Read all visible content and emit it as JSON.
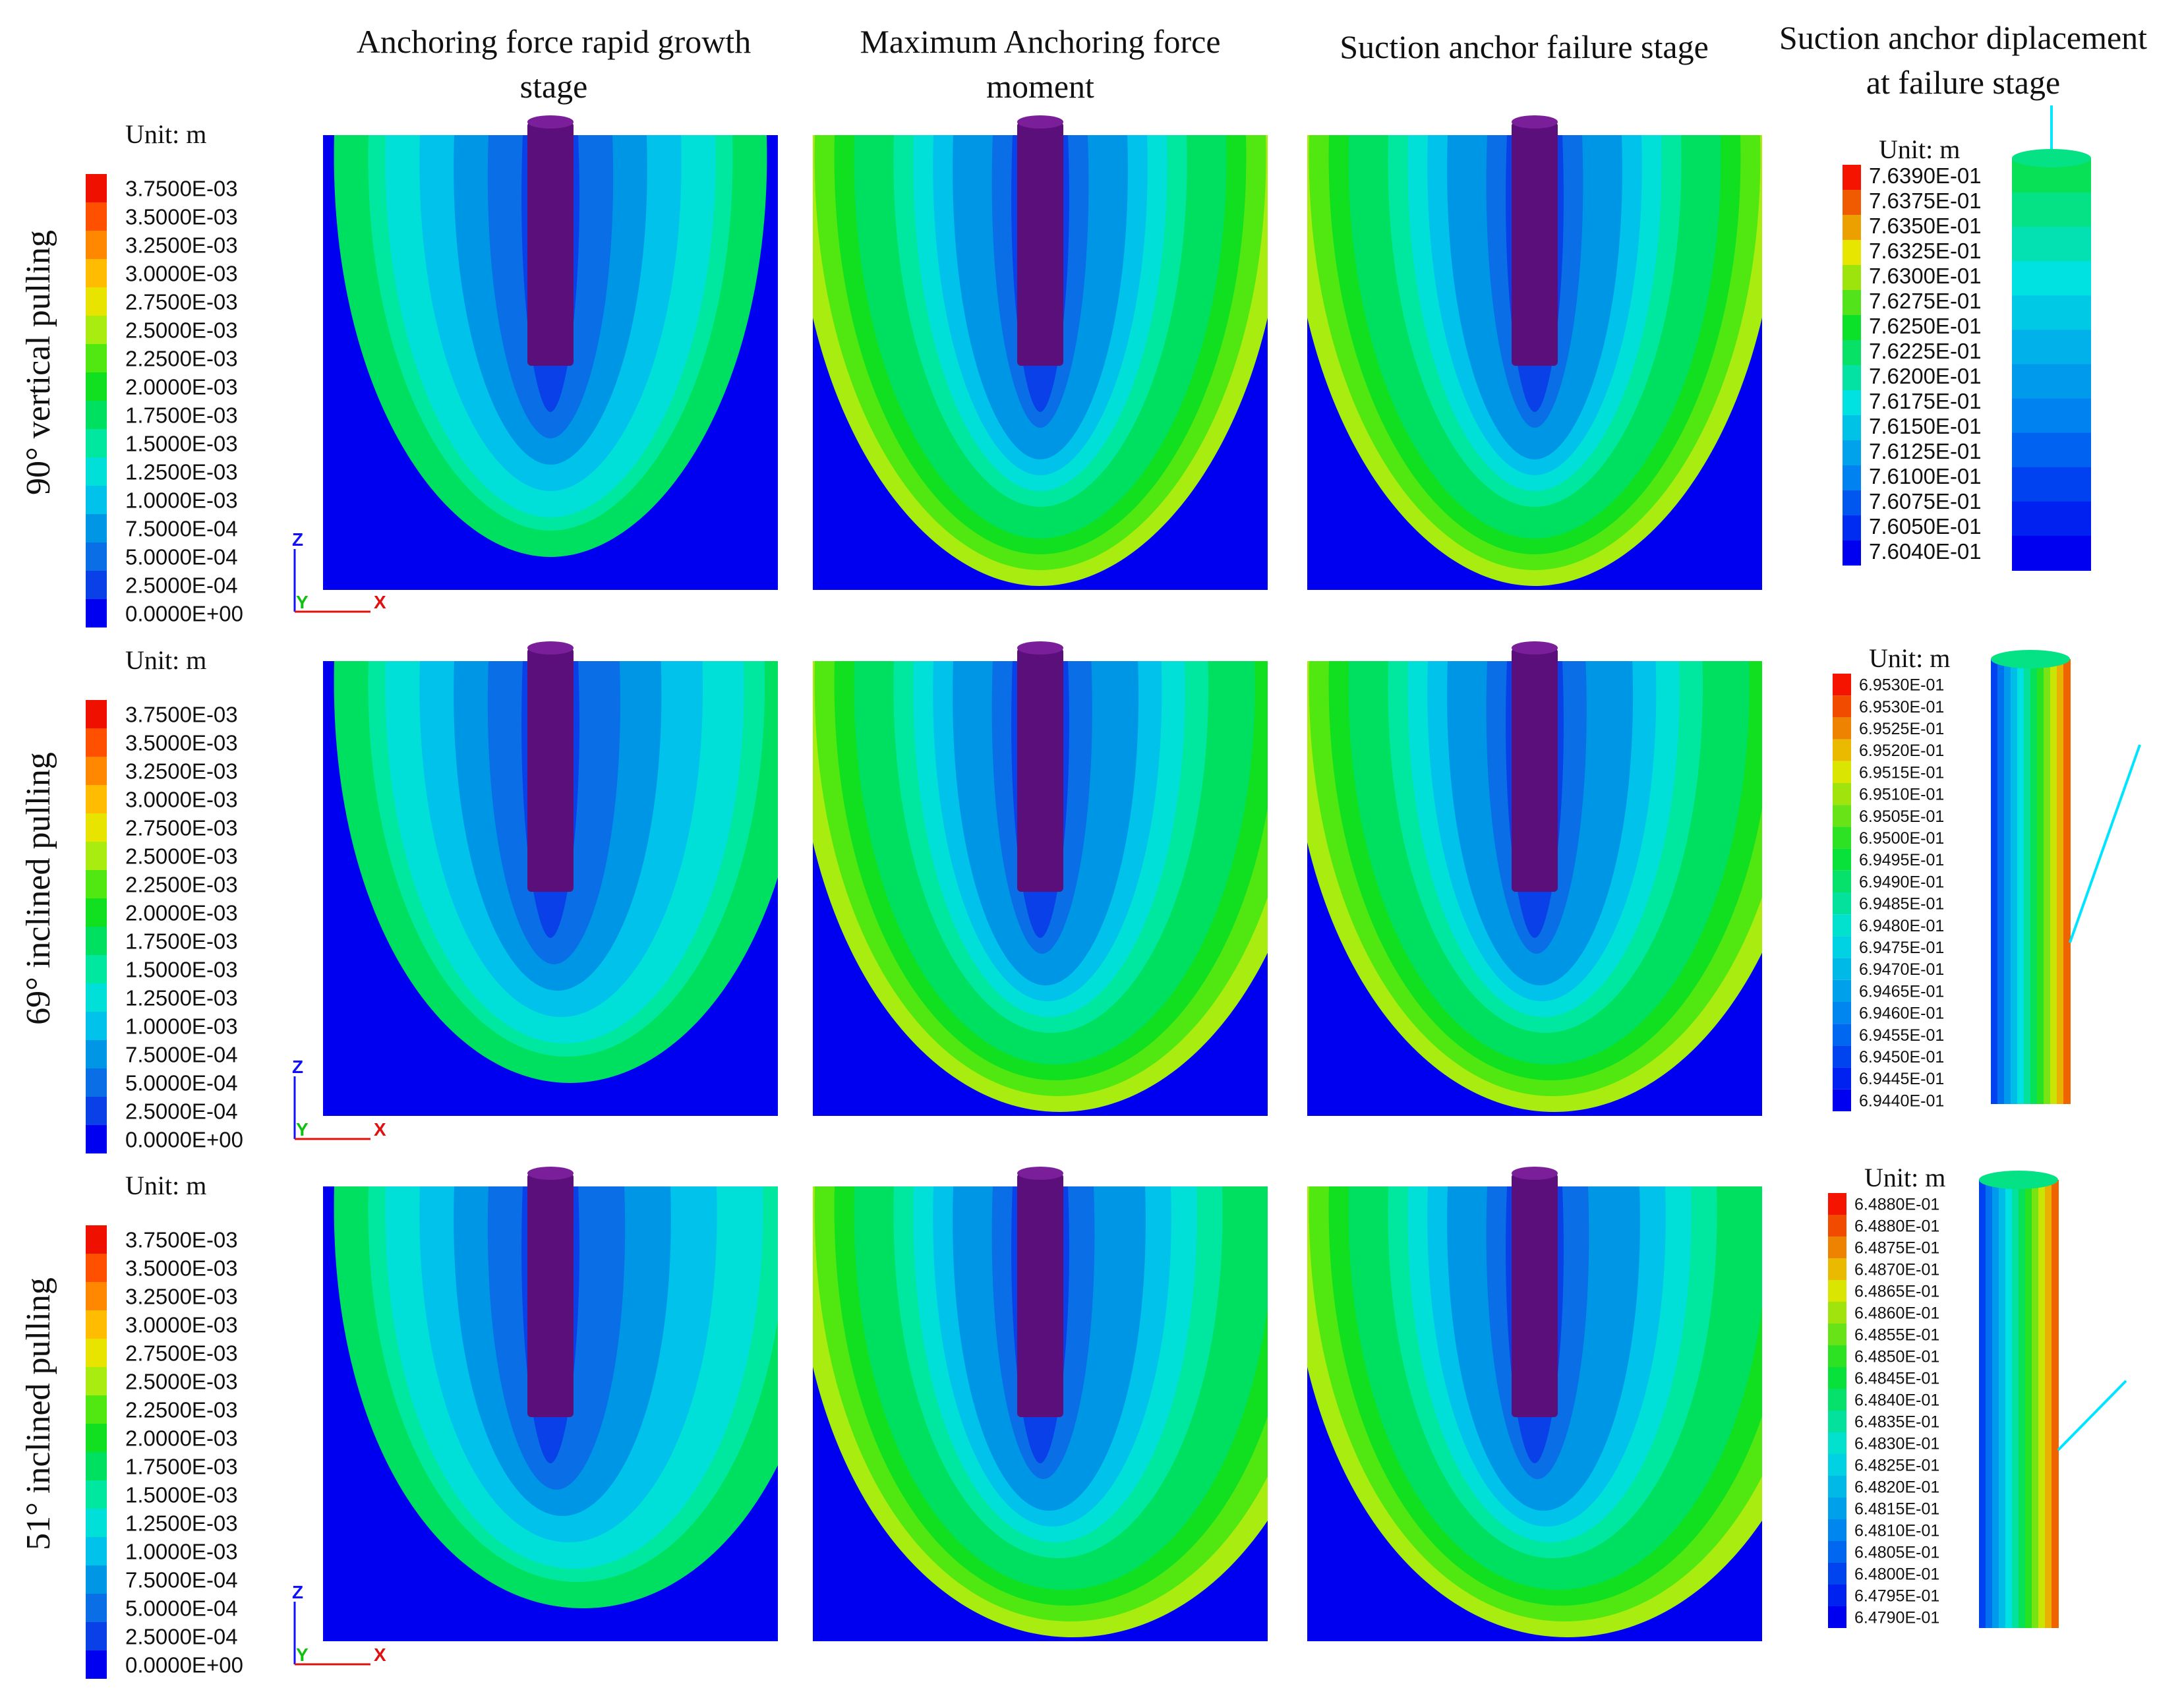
{
  "columns": [
    {
      "line1": "Anchoring force rapid growth",
      "line2": "stage"
    },
    {
      "line1": "Maximum Anchoring force",
      "line2": "moment"
    },
    {
      "line1": "Suction anchor failure stage",
      "line2": ""
    },
    {
      "line1": "Suction anchor diplacement",
      "line2": "at failure stage"
    }
  ],
  "rows": [
    {
      "label": "90° vertical pulling",
      "angle_deg": 90
    },
    {
      "label": "69° inclined pulling",
      "angle_deg": 69
    },
    {
      "label": "51° inclined pulling",
      "angle_deg": 51
    }
  ],
  "unit_label": "Unit: m",
  "axis_labels": {
    "z": "Z",
    "y": "Y",
    "x": "X"
  },
  "soil_legend_values": [
    "3.7500E-03",
    "3.5000E-03",
    "3.2500E-03",
    "3.0000E-03",
    "2.7500E-03",
    "2.5000E-03",
    "2.2500E-03",
    "2.0000E-03",
    "1.7500E-03",
    "1.5000E-03",
    "1.2500E-03",
    "1.0000E-03",
    "7.5000E-04",
    "5.0000E-04",
    "2.5000E-04",
    "0.0000E+00"
  ],
  "anchor_legends": [
    [
      "7.6390E-01",
      "7.6375E-01",
      "7.6350E-01",
      "7.6325E-01",
      "7.6300E-01",
      "7.6275E-01",
      "7.6250E-01",
      "7.6225E-01",
      "7.6200E-01",
      "7.6175E-01",
      "7.6150E-01",
      "7.6125E-01",
      "7.6100E-01",
      "7.6075E-01",
      "7.6050E-01",
      "7.6040E-01"
    ],
    [
      "6.9530E-01",
      "6.9530E-01",
      "6.9525E-01",
      "6.9520E-01",
      "6.9515E-01",
      "6.9510E-01",
      "6.9505E-01",
      "6.9500E-01",
      "6.9495E-01",
      "6.9490E-01",
      "6.9485E-01",
      "6.9480E-01",
      "6.9475E-01",
      "6.9470E-01",
      "6.9465E-01",
      "6.9460E-01",
      "6.9455E-01",
      "6.9450E-01",
      "6.9445E-01",
      "6.9440E-01"
    ],
    [
      "6.4880E-01",
      "6.4880E-01",
      "6.4875E-01",
      "6.4870E-01",
      "6.4865E-01",
      "6.4860E-01",
      "6.4855E-01",
      "6.4850E-01",
      "6.4845E-01",
      "6.4840E-01",
      "6.4835E-01",
      "6.4830E-01",
      "6.4825E-01",
      "6.4820E-01",
      "6.4815E-01",
      "6.4810E-01",
      "6.4805E-01",
      "6.4800E-01",
      "6.4795E-01",
      "6.4790E-01"
    ]
  ],
  "colors": {
    "anchor": "#5b0f7a",
    "line": "#00e5ff",
    "axis_z": "#1010ff",
    "axis_y": "#10c010",
    "axis_x": "#e01010"
  }
}
